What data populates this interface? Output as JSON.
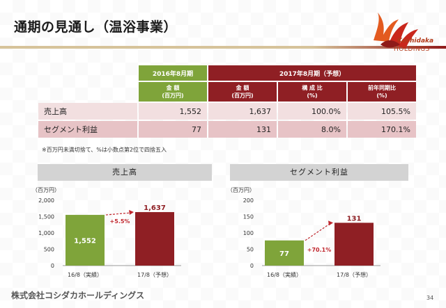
{
  "slide": {
    "title": "通期の見通し（温浴事業）",
    "page_number": "34",
    "footer": "株式会社コシダカホールディングス",
    "note": "※百万円未満切捨て、%は小数点第2位で四捨五入",
    "logo": {
      "name": "Koshidaka",
      "sub": "HOLDINGS"
    }
  },
  "table": {
    "col_2016": "2016年8月期",
    "col_2017": "2017年8月期（予想）",
    "sub_amount_2016": [
      "金 額",
      "(百万円)"
    ],
    "sub_amount_2017": [
      "金 額",
      "(百万円)"
    ],
    "sub_ratio": [
      "構 成 比",
      "(%)"
    ],
    "sub_yoy": [
      "前年同期比",
      "(%)"
    ],
    "rows": [
      {
        "label": "売上高",
        "v2016": "1,552",
        "v2017": "1,637",
        "ratio": "100.0%",
        "yoy": "105.5%"
      },
      {
        "label": "セグメント利益",
        "v2016": "77",
        "v2017": "131",
        "ratio": "8.0%",
        "yoy": "170.1%"
      }
    ]
  },
  "panels": {
    "sales_title": "売上高",
    "profit_title": "セグメント利益",
    "unit": "（百万円）"
  },
  "colors": {
    "green": "#7fa43a",
    "red": "#8f1f24",
    "arrow": "#c0262d"
  },
  "chart_data": [
    {
      "type": "bar",
      "title": "売上高",
      "ylabel": "（百万円）",
      "categories": [
        "16/8（実績）",
        "17/8（予想）"
      ],
      "values": [
        1552,
        1637
      ],
      "value_labels": [
        "1,552",
        "1,637"
      ],
      "ylim": [
        0,
        2000
      ],
      "yticks": [
        0,
        500,
        1000,
        1500,
        2000
      ],
      "ytick_labels": [
        "0",
        "500",
        "1,000",
        "1,500",
        "2,000"
      ],
      "annotation": "+5.5%"
    },
    {
      "type": "bar",
      "title": "セグメント利益",
      "ylabel": "（百万円）",
      "categories": [
        "16/8（実績）",
        "17/8（予想）"
      ],
      "values": [
        77,
        131
      ],
      "value_labels": [
        "77",
        "131"
      ],
      "ylim": [
        0,
        200
      ],
      "yticks": [
        0,
        50,
        100,
        150,
        200
      ],
      "ytick_labels": [
        "0",
        "50",
        "100",
        "150",
        "200"
      ],
      "annotation": "+70.1%"
    }
  ]
}
